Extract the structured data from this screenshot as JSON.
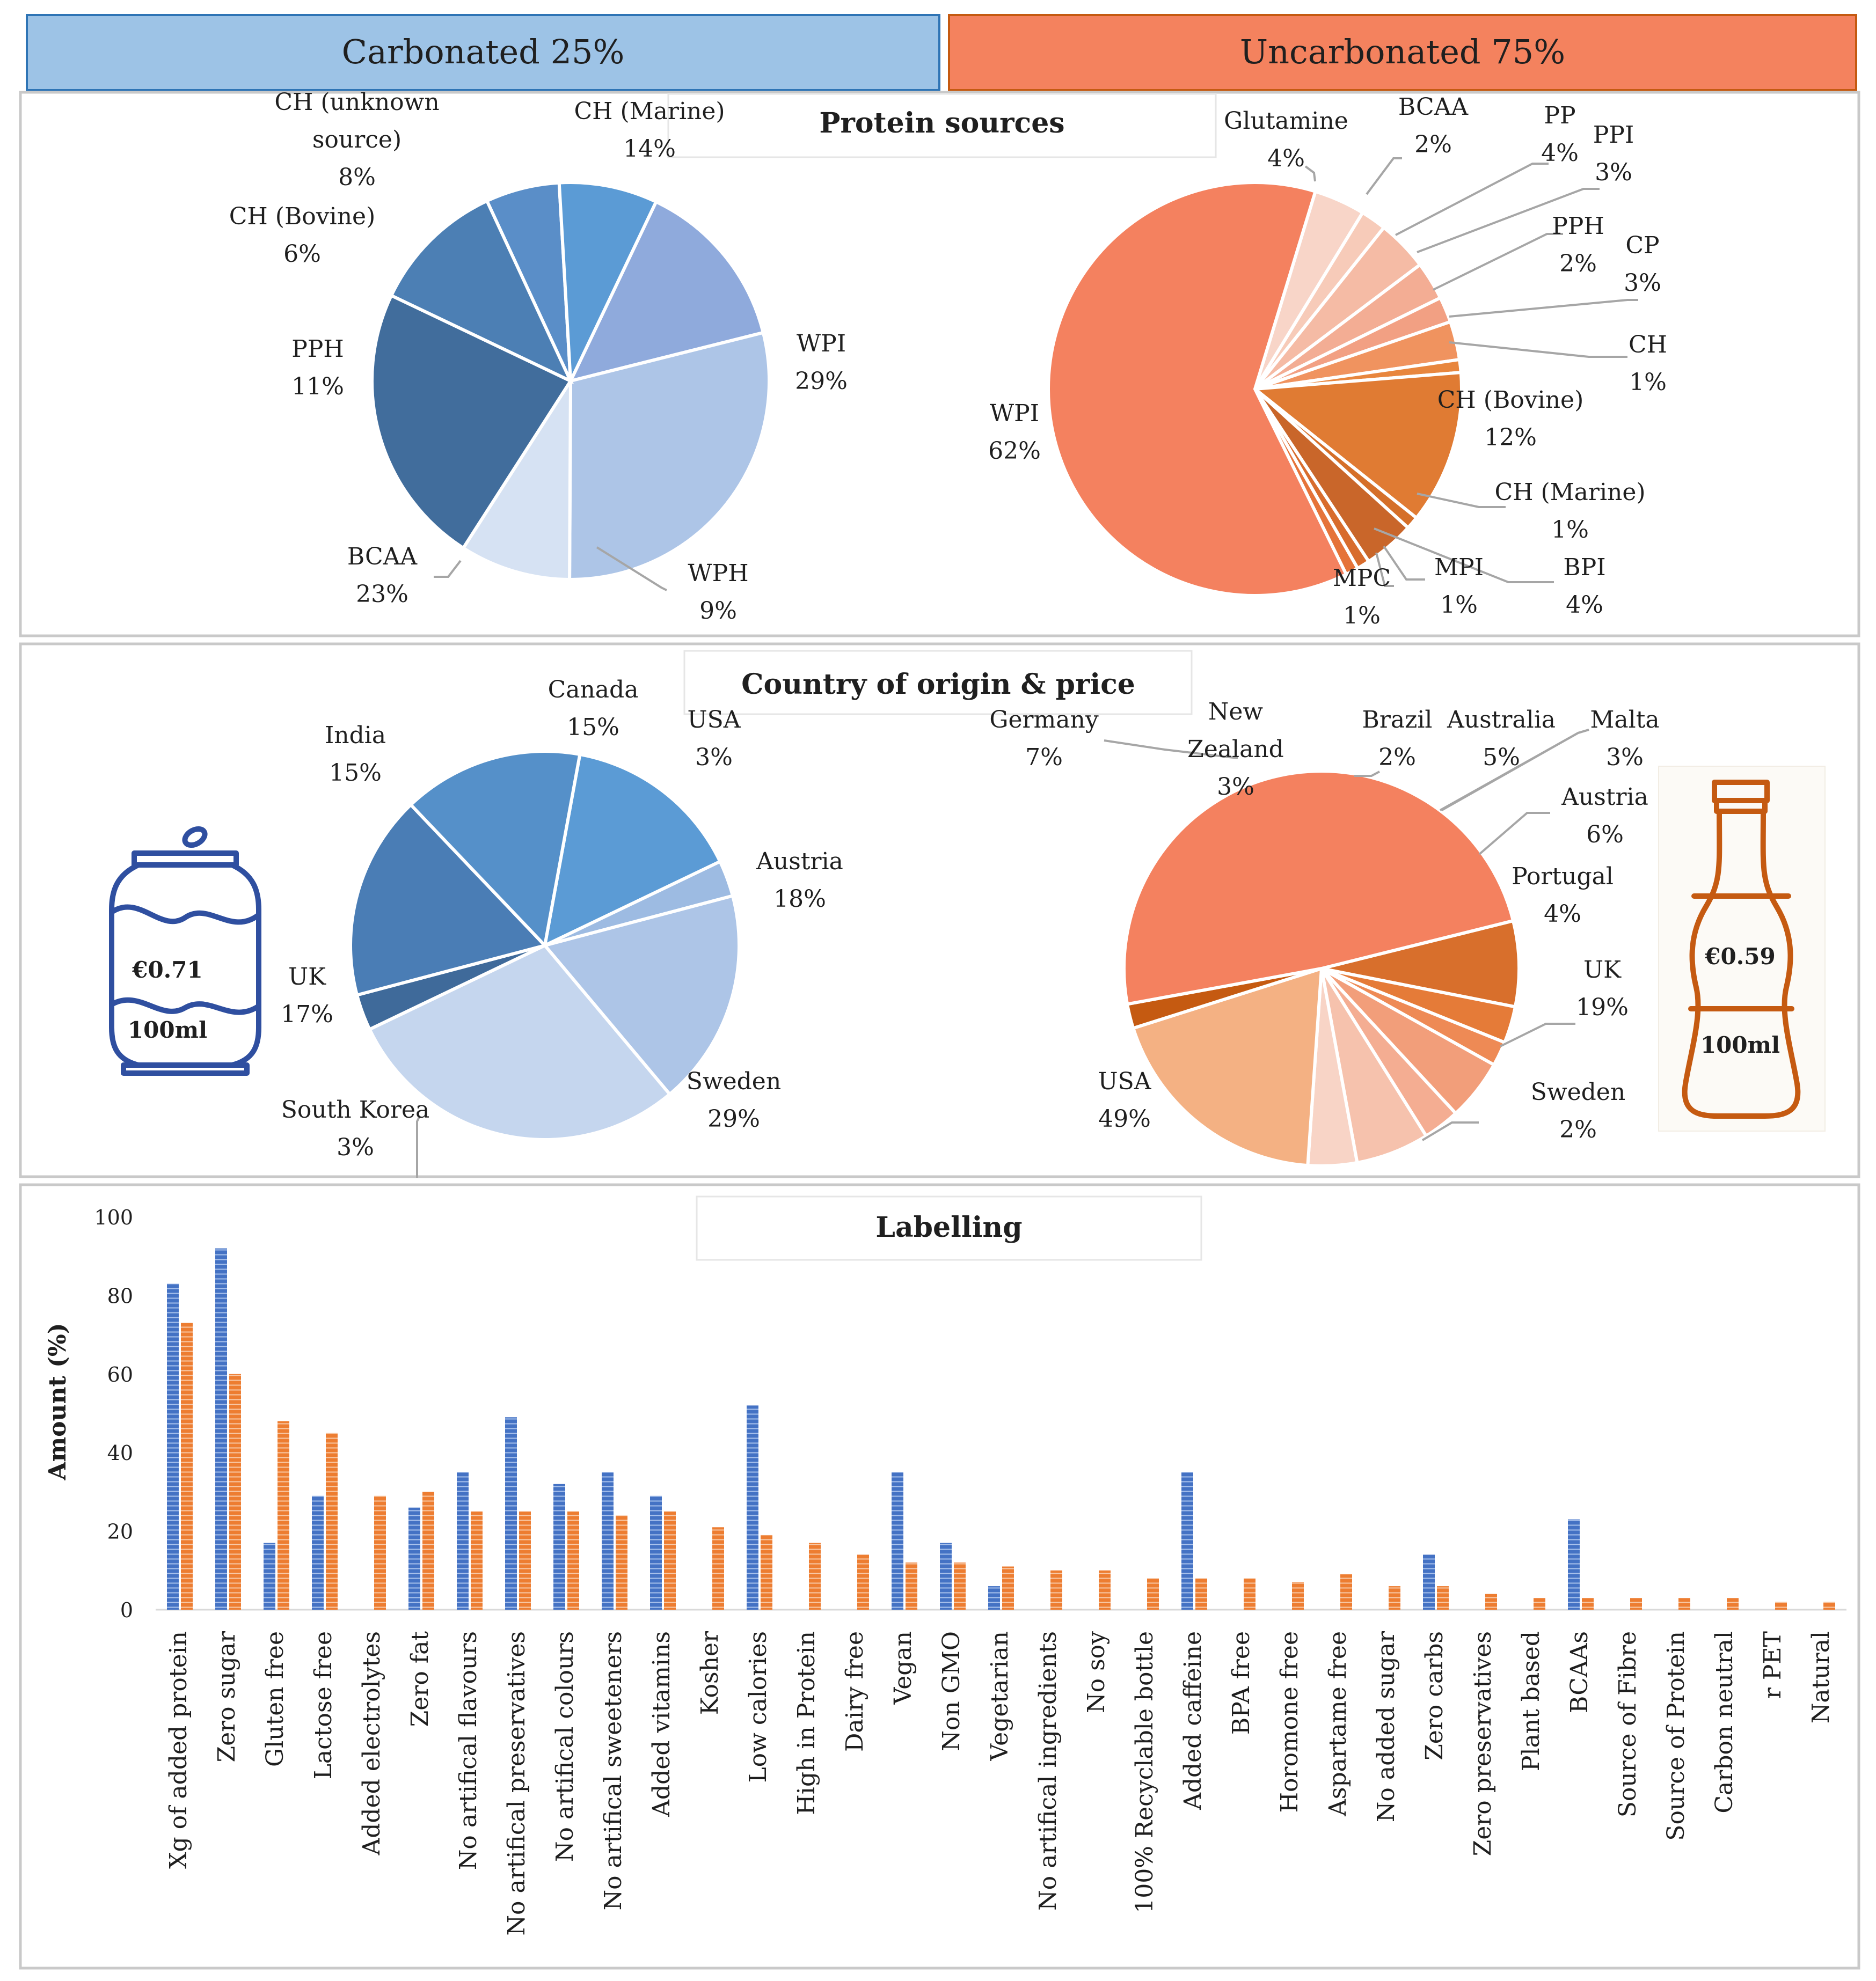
{
  "colors": {
    "carb_header_fill": "#9dc3e6",
    "carb_header_stroke": "#2e74b5",
    "uncarb_header_fill": "#f4825e",
    "uncarb_header_stroke": "#c55a11",
    "panel_border": "#c9c9c9",
    "leader": "#a6a6a6",
    "can_blue": "#2f4fa0",
    "bottle_orange": "#c55a11",
    "bar_carb": "#4472c4",
    "bar_uncarb": "#ed7d31"
  },
  "headers": {
    "carbonated": "Carbonated 25%",
    "uncarbonated": "Uncarbonated 75%"
  },
  "prices": {
    "carbonated_price": "€0.71",
    "carbonated_volume": "100ml",
    "uncarbonated_price": "€0.59",
    "uncarbonated_volume": "100ml"
  },
  "chart_data": [
    {
      "id": "protein_carbonated",
      "type": "pie",
      "title": "Protein sources",
      "slices": [
        {
          "label": "CH (Marine)",
          "pct": "14%",
          "value": 14,
          "color": "#8faadc"
        },
        {
          "label": "WPI",
          "pct": "29%",
          "value": 29,
          "color": "#adc5e7"
        },
        {
          "label": "WPH",
          "pct": "9%",
          "value": 9,
          "color": "#d6e2f3"
        },
        {
          "label": "BCAA",
          "pct": "23%",
          "value": 23,
          "color": "#416d9c"
        },
        {
          "label": "PPH",
          "pct": "11%",
          "value": 11,
          "color": "#4c7fb4"
        },
        {
          "label": "CH (Bovine)",
          "pct": "6%",
          "value": 6,
          "color": "#5a8ec8"
        },
        {
          "label": "CH (unknown source)",
          "pct": "8%",
          "value": 8,
          "color": "#5b9bd5"
        }
      ]
    },
    {
      "id": "protein_uncarbonated",
      "type": "pie",
      "title": "Protein sources",
      "slices": [
        {
          "label": "Glutamine",
          "pct": "4%",
          "value": 4,
          "color": "#f8d5c8"
        },
        {
          "label": "BCAA",
          "pct": "2%",
          "value": 2,
          "color": "#f7cbb9"
        },
        {
          "label": "PP",
          "pct": "4%",
          "value": 4,
          "color": "#f5bba5"
        },
        {
          "label": "PPI",
          "pct": "3%",
          "value": 3,
          "color": "#f3ad94"
        },
        {
          "label": "PPH",
          "pct": "2%",
          "value": 2,
          "color": "#f2a083"
        },
        {
          "label": "CP",
          "pct": "3%",
          "value": 3,
          "color": "#f0935f"
        },
        {
          "label": "CH",
          "pct": "1%",
          "value": 1,
          "color": "#e8863e"
        },
        {
          "label": "CH (Bovine)",
          "pct": "12%",
          "value": 12,
          "color": "#e07b33"
        },
        {
          "label": "CH (Marine)",
          "pct": "1%",
          "value": 1,
          "color": "#d56f29"
        },
        {
          "label": "BPI",
          "pct": "4%",
          "value": 4,
          "color": "#c9662a"
        },
        {
          "label": "MPI",
          "pct": "1%",
          "value": 1,
          "color": "#d86c2d"
        },
        {
          "label": "MPC",
          "pct": "1%",
          "value": 1,
          "color": "#e57339"
        },
        {
          "label": "WPI",
          "pct": "62%",
          "value": 62,
          "color": "#f4815f"
        }
      ]
    },
    {
      "id": "country_carbonated",
      "type": "pie",
      "title": "Country of origin & price",
      "slices": [
        {
          "label": "Canada",
          "pct": "15%",
          "value": 15,
          "color": "#5b9bd5"
        },
        {
          "label": "USA",
          "pct": "3%",
          "value": 3,
          "color": "#9dbbe2"
        },
        {
          "label": "Austria",
          "pct": "18%",
          "value": 18,
          "color": "#adc5e7"
        },
        {
          "label": "Sweden",
          "pct": "29%",
          "value": 29,
          "color": "#c5d6ee"
        },
        {
          "label": "South Korea",
          "pct": "3%",
          "value": 3,
          "color": "#3f6a9a"
        },
        {
          "label": "UK",
          "pct": "17%",
          "value": 17,
          "color": "#4a7db5"
        },
        {
          "label": "India",
          "pct": "15%",
          "value": 15,
          "color": "#5590c9"
        }
      ]
    },
    {
      "id": "country_uncarbonated",
      "type": "pie",
      "title": "Country of origin & price",
      "slices": [
        {
          "label": "Germany",
          "pct": "7%",
          "value": 7,
          "color": "#d86f2c"
        },
        {
          "label": "New Zealand",
          "pct": "3%",
          "value": 3,
          "color": "#e57b38"
        },
        {
          "label": "Brazil",
          "pct": "2%",
          "value": 2,
          "color": "#ee8a55"
        },
        {
          "label": "Australia",
          "pct": "5%",
          "value": 5,
          "color": "#f29e7a"
        },
        {
          "label": "Malta",
          "pct": "3%",
          "value": 3,
          "color": "#f4ad92"
        },
        {
          "label": "Austria",
          "pct": "6%",
          "value": 6,
          "color": "#f6c2ad"
        },
        {
          "label": "Portugal",
          "pct": "4%",
          "value": 4,
          "color": "#f8d4c6"
        },
        {
          "label": "UK",
          "pct": "19%",
          "value": 19,
          "color": "#f4b183"
        },
        {
          "label": "Sweden",
          "pct": "2%",
          "value": 2,
          "color": "#c55a11"
        },
        {
          "label": "USA",
          "pct": "49%",
          "value": 49,
          "color": "#f4815f"
        }
      ]
    },
    {
      "id": "labelling",
      "type": "bar",
      "title": "Labelling",
      "ylabel": "Amount (%)",
      "ylim": [
        0,
        100
      ],
      "yticks": [
        "0",
        "20",
        "40",
        "60",
        "80",
        "100"
      ],
      "categories": [
        "Xg of added protein",
        "Zero sugar",
        "Gluten free",
        "Lactose free",
        "Added electrolytes",
        "Zero fat",
        "No artifical flavours",
        "No artifical preservatives",
        "No artifical colours",
        "No artifical sweeteners",
        "Added vitamins",
        "Kosher",
        "Low calories",
        "High in Protein",
        "Dairy free",
        "Vegan",
        "Non GMO",
        "Vegetarian",
        "No artifical ingredients",
        "No soy",
        "100% Recyclable bottle",
        "Added caffeine",
        "BPA free",
        "Horomone free",
        "Aspartame free",
        "No added sugar",
        "Zero carbs",
        "Zero preservatives",
        "Plant based",
        "BCAAs",
        "Source of Fibre",
        "Source of Protein",
        "Carbon neutral",
        "r PET",
        "Natural"
      ],
      "series": [
        {
          "name": "Carbonated",
          "values": [
            83,
            92,
            17,
            29,
            0,
            26,
            35,
            49,
            32,
            35,
            29,
            0,
            52,
            0,
            0,
            35,
            17,
            6,
            0,
            0,
            0,
            35,
            0,
            0,
            0,
            0,
            14,
            0,
            0,
            23,
            0,
            0,
            0,
            0,
            0
          ]
        },
        {
          "name": "Uncarbonated",
          "values": [
            73,
            60,
            48,
            45,
            29,
            30,
            25,
            25,
            25,
            24,
            25,
            21,
            19,
            17,
            14,
            12,
            12,
            11,
            10,
            10,
            8,
            8,
            8,
            7,
            9,
            6,
            6,
            4,
            3,
            3,
            3,
            3,
            3,
            2,
            2
          ]
        }
      ]
    }
  ]
}
